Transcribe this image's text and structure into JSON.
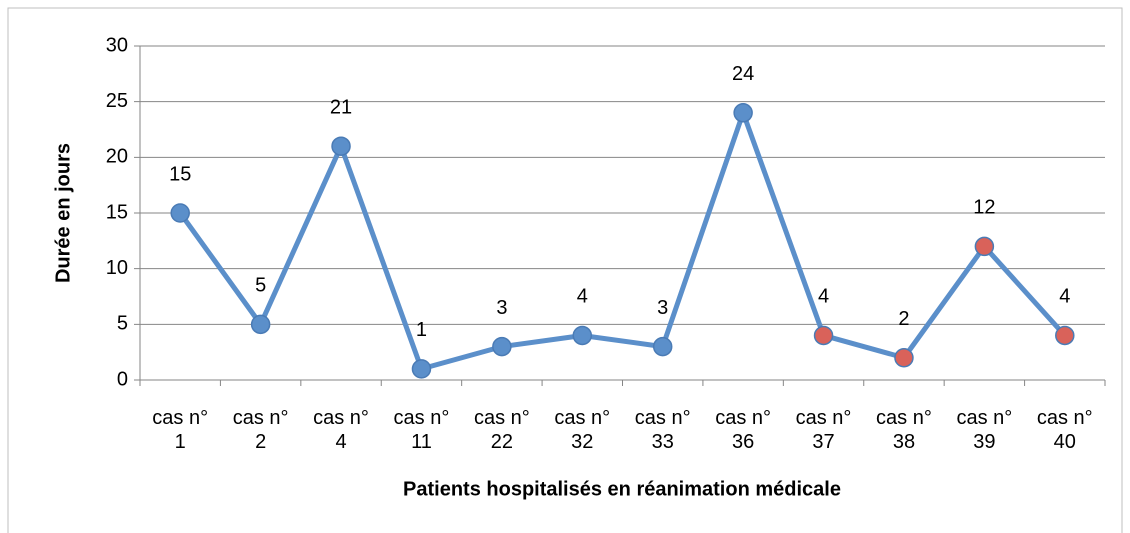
{
  "chart_data": {
    "type": "line",
    "x_label": "Patients hospitalisés en réanimation médicale",
    "y_label": "Durée en jours",
    "categories": [
      "cas n° 1",
      "cas n° 2",
      "cas n° 4",
      "cas n° 11",
      "cas n° 22",
      "cas n° 32",
      "cas n° 33",
      "cas n° 36",
      "cas n° 37",
      "cas n° 38",
      "cas n° 39",
      "cas n° 40"
    ],
    "series": [
      {
        "color": "#5b8fca",
        "values": [
          15,
          5,
          21,
          1,
          3,
          4,
          3,
          24,
          4,
          2,
          12,
          4
        ],
        "marker_colors": [
          "#5b8fca",
          "#5b8fca",
          "#5b8fca",
          "#5b8fca",
          "#5b8fca",
          "#5b8fca",
          "#5b8fca",
          "#5b8fca",
          "#d9625a",
          "#d9625a",
          "#d9625a",
          "#d9625a"
        ]
      }
    ],
    "ylim": [
      0,
      30
    ],
    "yticks": [
      0,
      5,
      10,
      15,
      20,
      25,
      30
    ],
    "grid": true,
    "data_labels": true
  }
}
